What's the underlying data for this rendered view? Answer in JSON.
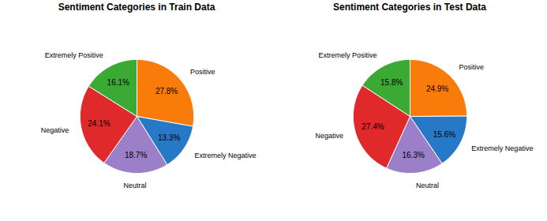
{
  "chart_data": [
    {
      "type": "pie",
      "title": "Sentiment Categories in Train Data",
      "categories": [
        "Positive",
        "Extremely Negative",
        "Neutral",
        "Negative",
        "Extremely Positive"
      ],
      "values": [
        27.8,
        13.3,
        18.7,
        24.1,
        16.1
      ],
      "value_labels": [
        "27.8%",
        "13.3%",
        "18.7%",
        "24.1%",
        "16.1%"
      ],
      "colors": [
        "#f97c0a",
        "#2878c8",
        "#9b7fc8",
        "#e0292a",
        "#3aaa35"
      ],
      "data_labels": true
    },
    {
      "type": "pie",
      "title": "Sentiment Categories in Test Data",
      "categories": [
        "Positive",
        "Extremely Negative",
        "Neutral",
        "Negative",
        "Extremely Positive"
      ],
      "values": [
        24.9,
        15.6,
        16.3,
        27.4,
        15.8
      ],
      "value_labels": [
        "24.9%",
        "15.6%",
        "16.3%",
        "27.4%",
        "15.8%"
      ],
      "colors": [
        "#f97c0a",
        "#2878c8",
        "#9b7fc8",
        "#e0292a",
        "#3aaa35"
      ],
      "data_labels": true
    }
  ]
}
